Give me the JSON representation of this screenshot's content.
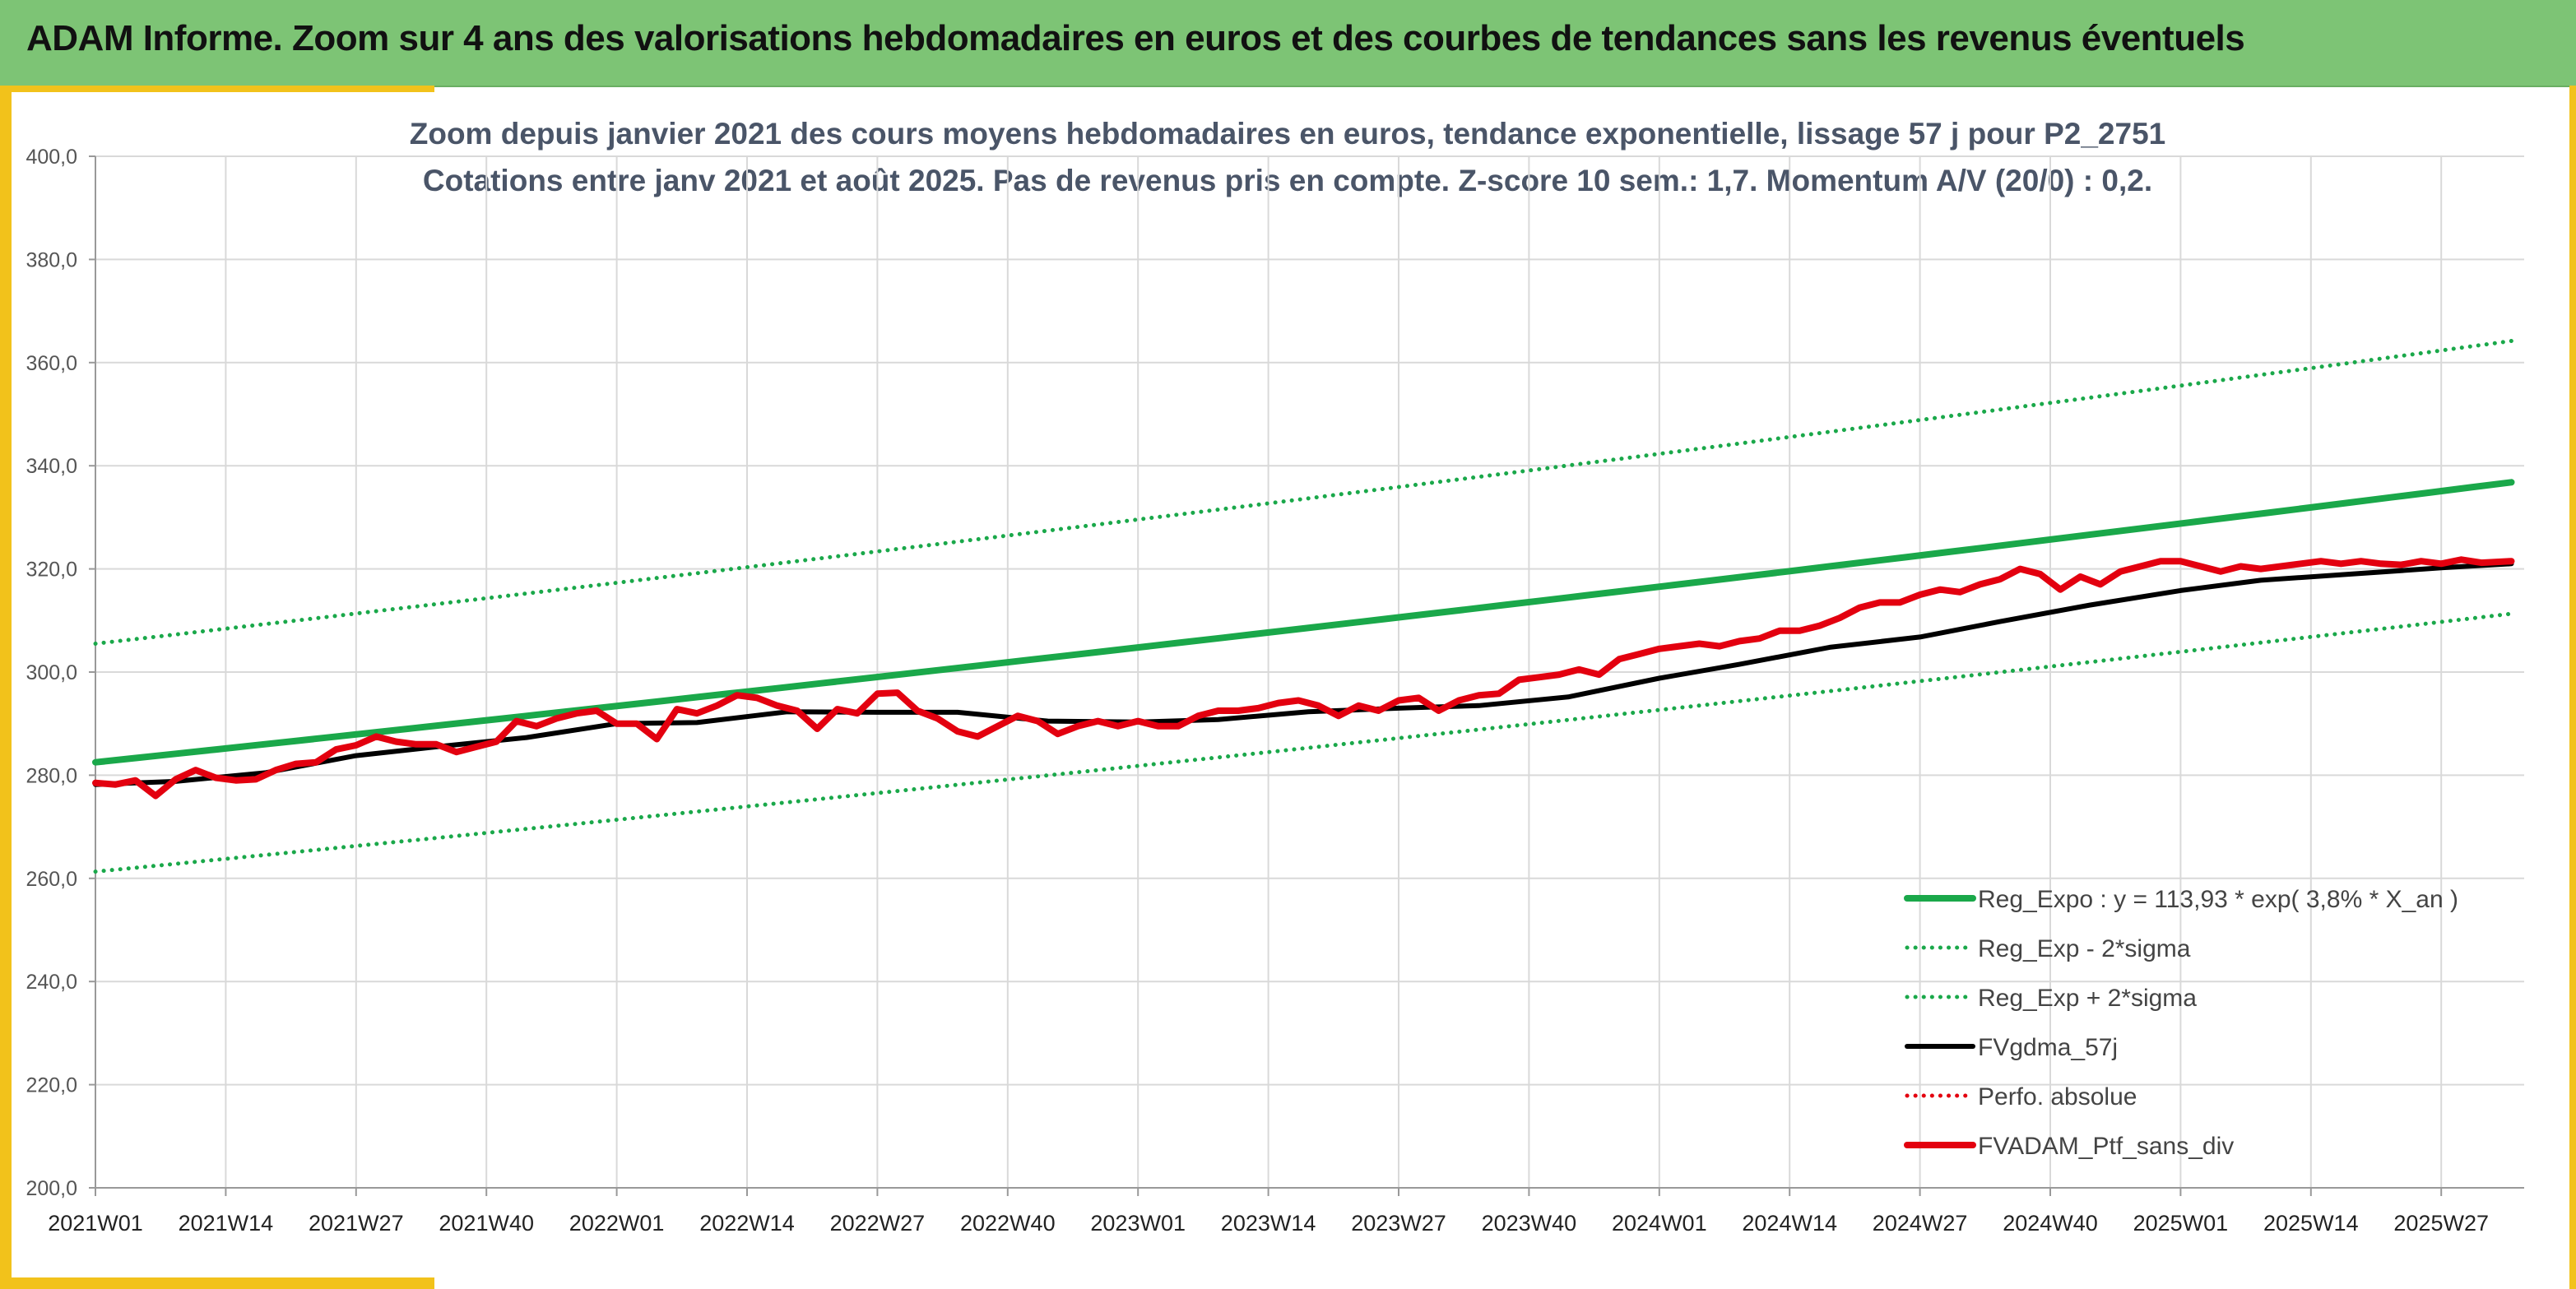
{
  "header": {
    "title": "ADAM Informe. Zoom sur 4 ans des valorisations hebdomadaires en euros et des courbes de tendances sans les revenus éventuels"
  },
  "colors": {
    "banner": "#7dc475",
    "frame": "#f2c21b",
    "trend": "#1aa84a",
    "band": "#1aa84a",
    "moving_average": "#000000",
    "portfolio": "#e3000f",
    "grid": "#d9d9d9"
  },
  "chart_data": {
    "type": "line",
    "subtitle_lines": [
      "Zoom depuis janvier 2021 des cours moyens hebdomadaires en euros, tendance exponentielle, lissage 57 j pour P2_2751",
      "Cotations entre janv 2021 et août 2025. Pas de revenus pris en compte. Z-score 10 sem.: 1,7. Momentum A/V (20/0) : 0,2."
    ],
    "xlabel": "",
    "ylabel": "",
    "ylim": [
      200,
      400
    ],
    "ytick_step": 20,
    "ytick_labels": [
      "200,0",
      "220,0",
      "240,0",
      "260,0",
      "280,0",
      "300,0",
      "320,0",
      "340,0",
      "360,0",
      "380,0",
      "400,0"
    ],
    "x_tick_labels": [
      "2021W01",
      "2021W14",
      "2021W27",
      "2021W40",
      "2022W01",
      "2022W14",
      "2022W27",
      "2022W40",
      "2023W01",
      "2023W14",
      "2023W27",
      "2023W40",
      "2024W01",
      "2024W14",
      "2024W27",
      "2024W40",
      "2025W01",
      "2025W14",
      "2025W27"
    ],
    "x_tick_interval_weeks": 13,
    "x_start": "2021W01",
    "x_end": "2025W34",
    "grid": true,
    "legend_position": "bottom-right",
    "series": [
      {
        "name": "Reg_Expo : y = 113,93 * exp( 3,8% *  X_an )",
        "style": "solid-thick",
        "color": "#1aa84a",
        "weeks": [
          "2021W01",
          "2025W34"
        ],
        "values": [
          282.5,
          336.8
        ]
      },
      {
        "name": "Reg_Exp - 2*sigma",
        "style": "dotted",
        "color": "#1aa84a",
        "weeks": [
          "2021W01",
          "2025W34"
        ],
        "values": [
          261.3,
          311.3
        ]
      },
      {
        "name": "Reg_Exp + 2*sigma",
        "style": "dotted",
        "color": "#1aa84a",
        "weeks": [
          "2021W01",
          "2025W34"
        ],
        "values": [
          305.5,
          364.2
        ]
      },
      {
        "name": "FVgdma_57j",
        "style": "solid",
        "color": "#000000",
        "weeks": [
          "2021W01",
          "2021W09",
          "2021W18",
          "2021W27",
          "2021W35",
          "2021W44",
          "2022W01",
          "2022W09",
          "2022W18",
          "2022W27",
          "2022W35",
          "2022W44",
          "2023W01",
          "2023W09",
          "2023W18",
          "2023W27",
          "2023W35",
          "2023W44",
          "2024W01",
          "2024W09",
          "2024W18",
          "2024W27",
          "2024W35",
          "2024W44",
          "2025W01",
          "2025W09",
          "2025W18",
          "2025W27",
          "2025W34"
        ],
        "values": [
          278.2,
          278.8,
          280.5,
          283.8,
          285.5,
          287.3,
          290.0,
          290.2,
          292.3,
          292.2,
          292.2,
          290.5,
          290.3,
          290.8,
          292.3,
          293.0,
          293.5,
          295.2,
          298.8,
          301.5,
          304.8,
          306.8,
          309.8,
          313.0,
          315.8,
          317.8,
          319.0,
          320.2,
          321.0
        ]
      },
      {
        "name": "Perfo. absolue",
        "style": "dotted",
        "color": "#e3000f",
        "weeks": [],
        "values": []
      },
      {
        "name": "FVADAM_Ptf_sans_div",
        "style": "solid-thick",
        "color": "#e3000f",
        "weeks": [
          "2021W01",
          "2021W03",
          "2021W05",
          "2021W07",
          "2021W09",
          "2021W11",
          "2021W13",
          "2021W15",
          "2021W17",
          "2021W19",
          "2021W21",
          "2021W23",
          "2021W25",
          "2021W27",
          "2021W29",
          "2021W31",
          "2021W33",
          "2021W35",
          "2021W37",
          "2021W39",
          "2021W41",
          "2021W43",
          "2021W45",
          "2021W47",
          "2021W49",
          "2021W51",
          "2022W01",
          "2022W03",
          "2022W05",
          "2022W07",
          "2022W09",
          "2022W11",
          "2022W13",
          "2022W15",
          "2022W17",
          "2022W19",
          "2022W21",
          "2022W23",
          "2022W25",
          "2022W27",
          "2022W29",
          "2022W31",
          "2022W33",
          "2022W35",
          "2022W37",
          "2022W39",
          "2022W41",
          "2022W43",
          "2022W45",
          "2022W47",
          "2022W49",
          "2022W51",
          "2023W01",
          "2023W03",
          "2023W05",
          "2023W07",
          "2023W09",
          "2023W11",
          "2023W13",
          "2023W15",
          "2023W17",
          "2023W19",
          "2023W21",
          "2023W23",
          "2023W25",
          "2023W27",
          "2023W29",
          "2023W31",
          "2023W33",
          "2023W35",
          "2023W37",
          "2023W39",
          "2023W41",
          "2023W43",
          "2023W45",
          "2023W47",
          "2023W49",
          "2023W51",
          "2024W01",
          "2024W03",
          "2024W05",
          "2024W07",
          "2024W09",
          "2024W11",
          "2024W13",
          "2024W15",
          "2024W17",
          "2024W19",
          "2024W21",
          "2024W23",
          "2024W25",
          "2024W27",
          "2024W29",
          "2024W31",
          "2024W33",
          "2024W35",
          "2024W37",
          "2024W39",
          "2024W41",
          "2024W43",
          "2024W45",
          "2024W47",
          "2024W49",
          "2024W51",
          "2025W01",
          "2025W03",
          "2025W05",
          "2025W07",
          "2025W09",
          "2025W11",
          "2025W13",
          "2025W15",
          "2025W17",
          "2025W19",
          "2025W21",
          "2025W23",
          "2025W25",
          "2025W27",
          "2025W29",
          "2025W31",
          "2025W34"
        ],
        "values": [
          278.5,
          278.2,
          279.0,
          276.0,
          279.2,
          281.0,
          279.5,
          279.0,
          279.2,
          281.0,
          282.2,
          282.5,
          285.0,
          285.8,
          287.5,
          286.5,
          286.0,
          286.0,
          284.5,
          285.5,
          286.5,
          290.5,
          289.5,
          291.0,
          292.0,
          292.5,
          290.0,
          290.0,
          287.0,
          292.8,
          292.0,
          293.5,
          295.5,
          295.0,
          293.5,
          292.5,
          289.0,
          292.8,
          292.0,
          295.8,
          296.0,
          292.5,
          291.0,
          288.5,
          287.5,
          289.5,
          291.5,
          290.5,
          288.0,
          289.5,
          290.5,
          289.5,
          290.5,
          289.5,
          289.5,
          291.5,
          292.5,
          292.5,
          293.0,
          294.0,
          294.5,
          293.5,
          291.5,
          293.5,
          292.5,
          294.5,
          295.0,
          292.5,
          294.5,
          295.5,
          295.8,
          298.5,
          299.0,
          299.5,
          300.5,
          299.5,
          302.5,
          303.5,
          304.5,
          305.0,
          305.5,
          305.0,
          306.0,
          306.5,
          308.0,
          308.0,
          309.0,
          310.5,
          312.5,
          313.5,
          313.5,
          315.0,
          316.0,
          315.5,
          317.0,
          318.0,
          320.0,
          319.0,
          316.0,
          318.5,
          317.0,
          319.5,
          320.5,
          321.5,
          321.5,
          320.5,
          319.5,
          320.5,
          320.0,
          320.5,
          321.0,
          321.5,
          321.0,
          321.5,
          321.0,
          320.8,
          321.5,
          321.0,
          321.8,
          321.2,
          321.5
        ]
      }
    ]
  }
}
